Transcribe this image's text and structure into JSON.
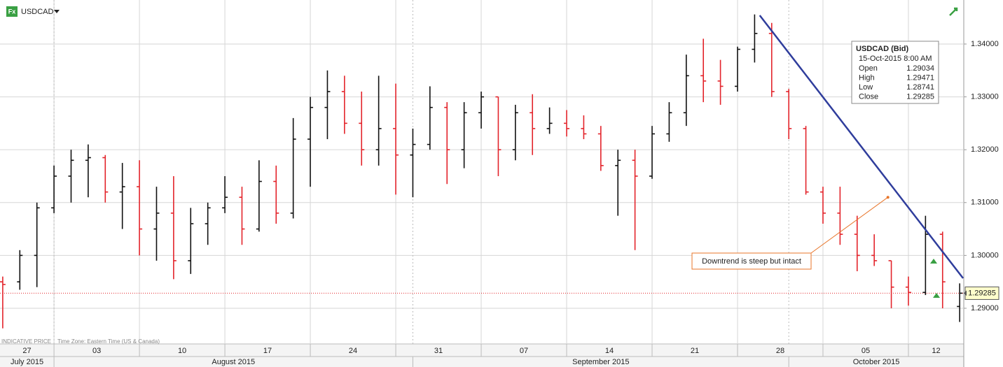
{
  "chart_data": {
    "type": "ohlc",
    "title": "USDCAD",
    "icon_text": "Fx",
    "footer": "INDICATIVE PRICE",
    "timezone": "Time Zone: Eastern Time (US & Canada)",
    "x": [
      -3,
      -2,
      -1,
      0,
      1,
      2,
      3,
      4,
      5,
      6,
      7,
      8,
      9,
      10,
      11,
      12,
      13,
      14,
      15,
      16,
      17,
      18,
      19,
      20,
      21,
      22,
      23,
      24,
      25,
      26,
      27,
      28,
      29,
      30,
      31,
      32,
      33,
      34,
      35,
      36,
      37,
      38,
      39,
      40,
      41,
      42,
      43,
      44,
      45,
      46,
      47,
      48,
      49,
      50,
      51,
      52,
      53
    ],
    "open": [
      1.295,
      1.295,
      1.3,
      1.309,
      1.315,
      1.318,
      1.3185,
      1.312,
      1.313,
      1.305,
      1.308,
      1.299,
      1.306,
      1.309,
      1.311,
      1.305,
      1.314,
      1.308,
      1.322,
      1.328,
      1.331,
      1.325,
      1.32,
      1.324,
      1.319,
      1.321,
      1.328,
      1.32,
      1.327,
      1.33,
      1.32,
      1.327,
      1.324,
      1.325,
      1.324,
      1.323,
      1.317,
      1.318,
      1.315,
      1.323,
      1.327,
      1.334,
      1.333,
      1.332,
      1.339,
      1.342,
      1.331,
      1.324,
      1.312,
      1.308,
      1.304,
      1.3,
      1.299,
      1.294,
      1.293,
      1.304,
      1.29034
    ],
    "high": [
      1.296,
      1.301,
      1.31,
      1.317,
      1.32,
      1.321,
      1.319,
      1.3175,
      1.318,
      1.313,
      1.315,
      1.309,
      1.31,
      1.315,
      1.313,
      1.318,
      1.317,
      1.326,
      1.33,
      1.335,
      1.334,
      1.331,
      1.334,
      1.3325,
      1.324,
      1.332,
      1.329,
      1.329,
      1.331,
      1.33,
      1.3285,
      1.3305,
      1.328,
      1.3275,
      1.3265,
      1.3245,
      1.32,
      1.32,
      1.3245,
      1.329,
      1.338,
      1.341,
      1.337,
      1.3395,
      1.3456,
      1.344,
      1.3315,
      1.3245,
      1.313,
      1.313,
      1.3075,
      1.304,
      1.299,
      1.296,
      1.3075,
      1.3045,
      1.29471
    ],
    "low": [
      1.2862,
      1.2935,
      1.294,
      1.308,
      1.31,
      1.311,
      1.31,
      1.305,
      1.3,
      1.299,
      1.2955,
      1.2965,
      1.302,
      1.308,
      1.302,
      1.3045,
      1.306,
      1.307,
      1.313,
      1.322,
      1.323,
      1.317,
      1.317,
      1.3115,
      1.311,
      1.32,
      1.3135,
      1.3165,
      1.324,
      1.315,
      1.318,
      1.319,
      1.323,
      1.3225,
      1.322,
      1.316,
      1.3075,
      1.301,
      1.3145,
      1.3215,
      1.3245,
      1.329,
      1.3285,
      1.331,
      1.3365,
      1.33,
      1.322,
      1.3115,
      1.306,
      1.302,
      1.297,
      1.298,
      1.29,
      1.2905,
      1.2925,
      1.29,
      1.28741
    ],
    "close": [
      1.2945,
      1.3,
      1.309,
      1.315,
      1.318,
      1.3185,
      1.312,
      1.313,
      1.305,
      1.308,
      1.299,
      1.306,
      1.309,
      1.311,
      1.305,
      1.314,
      1.308,
      1.322,
      1.328,
      1.331,
      1.325,
      1.32,
      1.324,
      1.319,
      1.321,
      1.328,
      1.32,
      1.327,
      1.33,
      1.32,
      1.327,
      1.324,
      1.325,
      1.324,
      1.323,
      1.317,
      1.318,
      1.315,
      1.323,
      1.327,
      1.334,
      1.333,
      1.332,
      1.339,
      1.342,
      1.331,
      1.324,
      1.312,
      1.308,
      1.304,
      1.3,
      1.299,
      1.294,
      1.293,
      1.304,
      1.295,
      1.29285
    ],
    "up_color": "#111111",
    "down_color": "#e3242b",
    "xlim": [
      -3.16,
      53.24
    ],
    "ylim": [
      1.28325,
      1.34833
    ],
    "xticks": [
      {
        "value": -5,
        "label": "27"
      },
      {
        "value": 0,
        "label": "03"
      },
      {
        "value": 5,
        "label": "10"
      },
      {
        "value": 10,
        "label": "17"
      },
      {
        "value": 15,
        "label": "24"
      },
      {
        "value": 20,
        "label": "31"
      },
      {
        "value": 25,
        "label": "07"
      },
      {
        "value": 30,
        "label": "14"
      },
      {
        "value": 35,
        "label": "21"
      },
      {
        "value": 40,
        "label": "28"
      },
      {
        "value": 45,
        "label": "05"
      },
      {
        "value": 50,
        "label": "12"
      }
    ],
    "months": [
      {
        "start": -23,
        "label": "July 2015"
      },
      {
        "start": 0,
        "label": "August 2015"
      },
      {
        "start": 21,
        "label": "September 2015"
      },
      {
        "start": 43,
        "label": "October 2015"
      }
    ],
    "yticks": [
      {
        "value": 1.29,
        "label": "1.29000"
      },
      {
        "value": 1.3,
        "label": "1.30000"
      },
      {
        "value": 1.31,
        "label": "1.31000"
      },
      {
        "value": 1.32,
        "label": "1.32000"
      },
      {
        "value": 1.33,
        "label": "1.33000"
      },
      {
        "value": 1.34,
        "label": "1.34000"
      }
    ],
    "grid": true,
    "last_price": 1.29285,
    "trendline": {
      "x": [
        41.3,
        53.2
      ],
      "y": [
        1.34542,
        1.29568
      ],
      "color": "#2f3d9c"
    },
    "annotation": {
      "text": "Downtrend is steep but intact",
      "x": 48.8,
      "y": 1.311,
      "color": "#e8752a"
    },
    "tooltip": {
      "title": "USDCAD (Bid)",
      "date": "15-Oct-2015 8:00 AM",
      "rows": [
        {
          "label": "Open",
          "value": 1.29034
        },
        {
          "label": "High",
          "value": 1.29471
        },
        {
          "label": "Low",
          "value": 1.28741
        },
        {
          "label": "Close",
          "value": 1.29285
        }
      ]
    }
  }
}
